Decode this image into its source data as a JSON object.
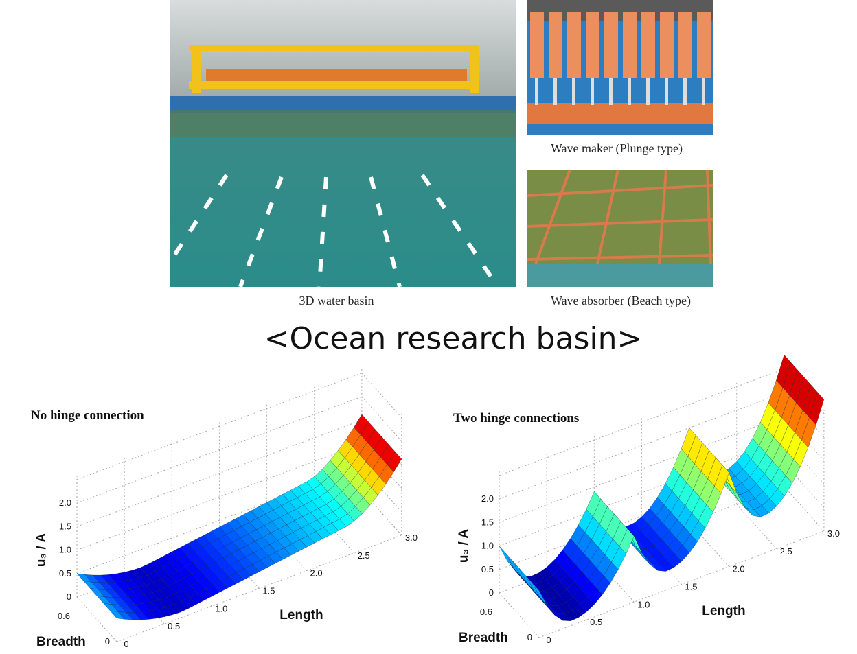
{
  "photos": {
    "basin_caption": "3D water basin",
    "wave_maker_caption": "Wave maker (Plunge type)",
    "wave_absorber_caption": "Wave absorber (Beach type)"
  },
  "heading": "<Ocean research basin>",
  "plots": [
    {
      "title": "No hinge connection",
      "z_label": "u₃ / A",
      "length_label": "Length",
      "breadth_label": "Breadth",
      "z_ticks": [
        "0",
        "0.5",
        "1.0",
        "1.5",
        "2.0"
      ],
      "length_ticks": [
        "0",
        "0.5",
        "1.0",
        "1.5",
        "2.0",
        "2.5",
        "3.0"
      ],
      "breadth_ticks": [
        "0",
        "0.6"
      ]
    },
    {
      "title": "Two hinge connections",
      "z_label": "u₃ / A",
      "length_label": "Length",
      "breadth_label": "Breadth",
      "z_ticks": [
        "0",
        "0.5",
        "1.0",
        "1.5",
        "2.0"
      ],
      "length_ticks": [
        "0",
        "0.5",
        "1.0",
        "1.5",
        "2.0",
        "2.5",
        "3.0"
      ],
      "breadth_ticks": [
        "0",
        "0.6"
      ]
    }
  ]
}
